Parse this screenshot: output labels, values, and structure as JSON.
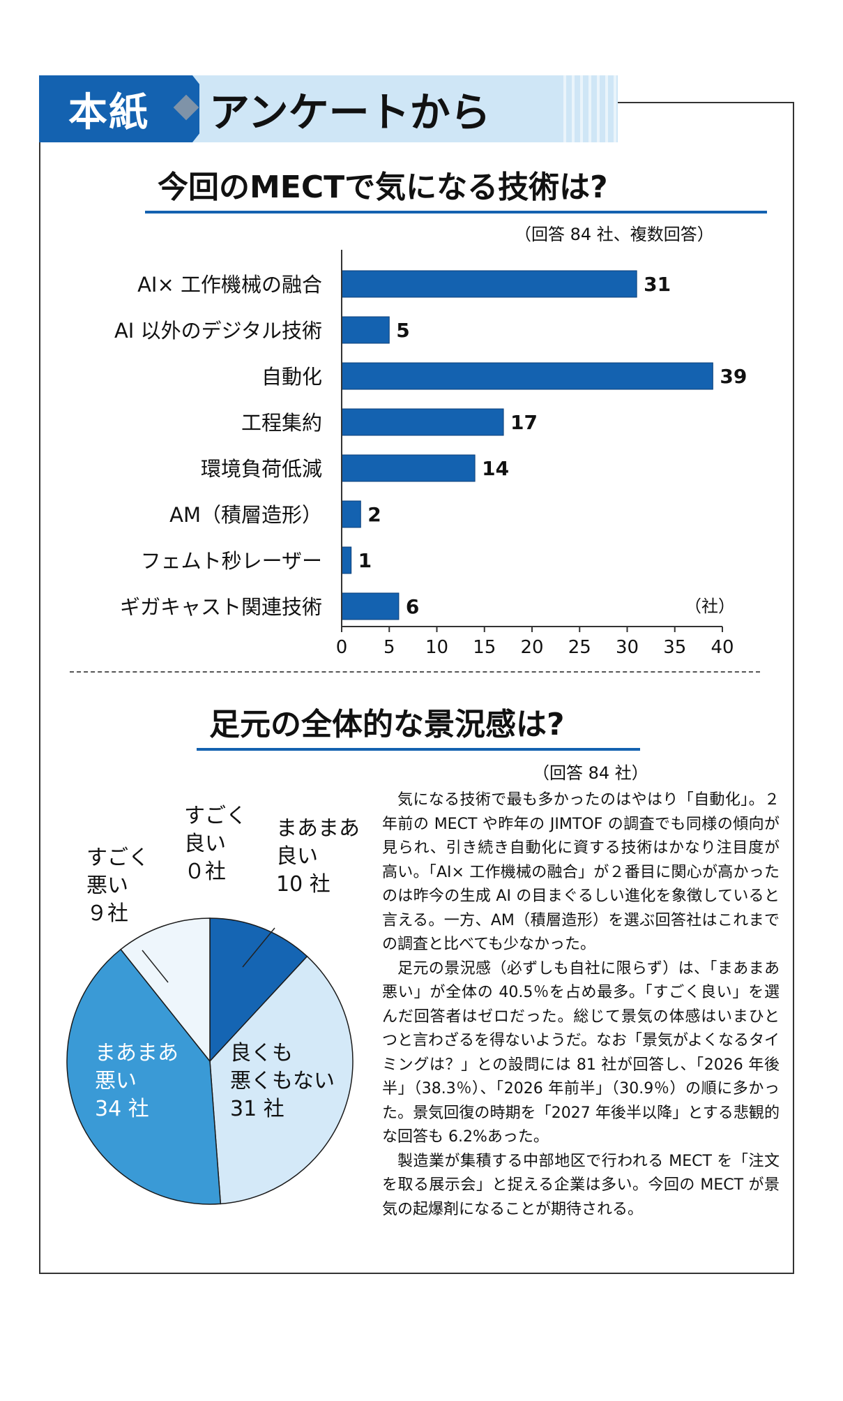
{
  "banner": {
    "tag": "本紙",
    "title": "アンケートから"
  },
  "colors": {
    "accent": "#1462b0",
    "light": "#cfe6f6"
  },
  "chart_data": [
    {
      "type": "bar",
      "orientation": "horizontal",
      "title": "今回のMECTで気になる技術は?",
      "note": "（回答 84 社、複数回答）",
      "unit_label": "（社）",
      "categories": [
        "AI× 工作機械の融合",
        "AI 以外のデジタル技術",
        "自動化",
        "工程集約",
        "環境負荷低減",
        "AM（積層造形）",
        "フェムト秒レーザー",
        "ギガキャスト関連技術"
      ],
      "values": [
        31,
        5,
        39,
        17,
        14,
        2,
        1,
        6
      ],
      "xlim": [
        0,
        40
      ],
      "xticks": [
        0,
        5,
        10,
        15,
        20,
        25,
        30,
        35,
        40
      ]
    },
    {
      "type": "pie",
      "title": "足元の全体的な景況感は?",
      "note": "（回答 84 社）",
      "slices": [
        {
          "label": "まあまあ良い",
          "value": 10,
          "value_text": "10 社",
          "color": "#1565b3"
        },
        {
          "label": "良くも悪くもない",
          "value": 31,
          "value_text": "31 社",
          "color": "#d4e9f8"
        },
        {
          "label": "まあまあ悪い",
          "value": 34,
          "value_text": "34 社",
          "color": "#3a9ad6"
        },
        {
          "label": "すごく悪い",
          "value": 9,
          "value_text": "９社",
          "color": "#eef6fc"
        },
        {
          "label": "すごく良い",
          "value": 0,
          "value_text": "０社",
          "color": "#0d4f96"
        }
      ]
    }
  ],
  "pie_labels": {
    "good": "すごく\n良い\n０社",
    "fair": "まあまあ\n良い\n10 社",
    "bad": "すごく\n悪い\n９社",
    "poor": "まあまあ\n悪い\n34 社",
    "neutral": "良くも\n悪くもない\n31 社"
  },
  "article": [
    "気になる技術で最も多かったのはやはり「自動化」。２年前の MECT や昨年の JIMTOF の調査でも同様の傾向が見られ、引き続き自動化に資する技術はかなり注目度が高い。「AI× 工作機械の融合」が２番目に関心が高かったのは昨今の生成 AI の目まぐるしい進化を象徴していると言える。一方、AM（積層造形）を選ぶ回答社はこれまでの調査と比べても少なかった。",
    "足元の景況感（必ずしも自社に限らず）は、「まあまあ悪い」が全体の 40.5％を占め最多。「すごく良い」を選んだ回答者はゼロだった。総じて景気の体感はいまひとつと言わざるを得ないようだ。なお「景気がよくなるタイミングは？」との設問には 81 社が回答し、「2026 年後半」（38.3％）、「2026 年前半」（30.9％）の順に多かった。景気回復の時期を「2027 年後半以降」とする悲観的な回答も 6.2%あった。",
    "製造業が集積する中部地区で行われる MECT を「注文を取る展示会」と捉える企業は多い。今回の MECT が景気の起爆剤になることが期待される。"
  ]
}
